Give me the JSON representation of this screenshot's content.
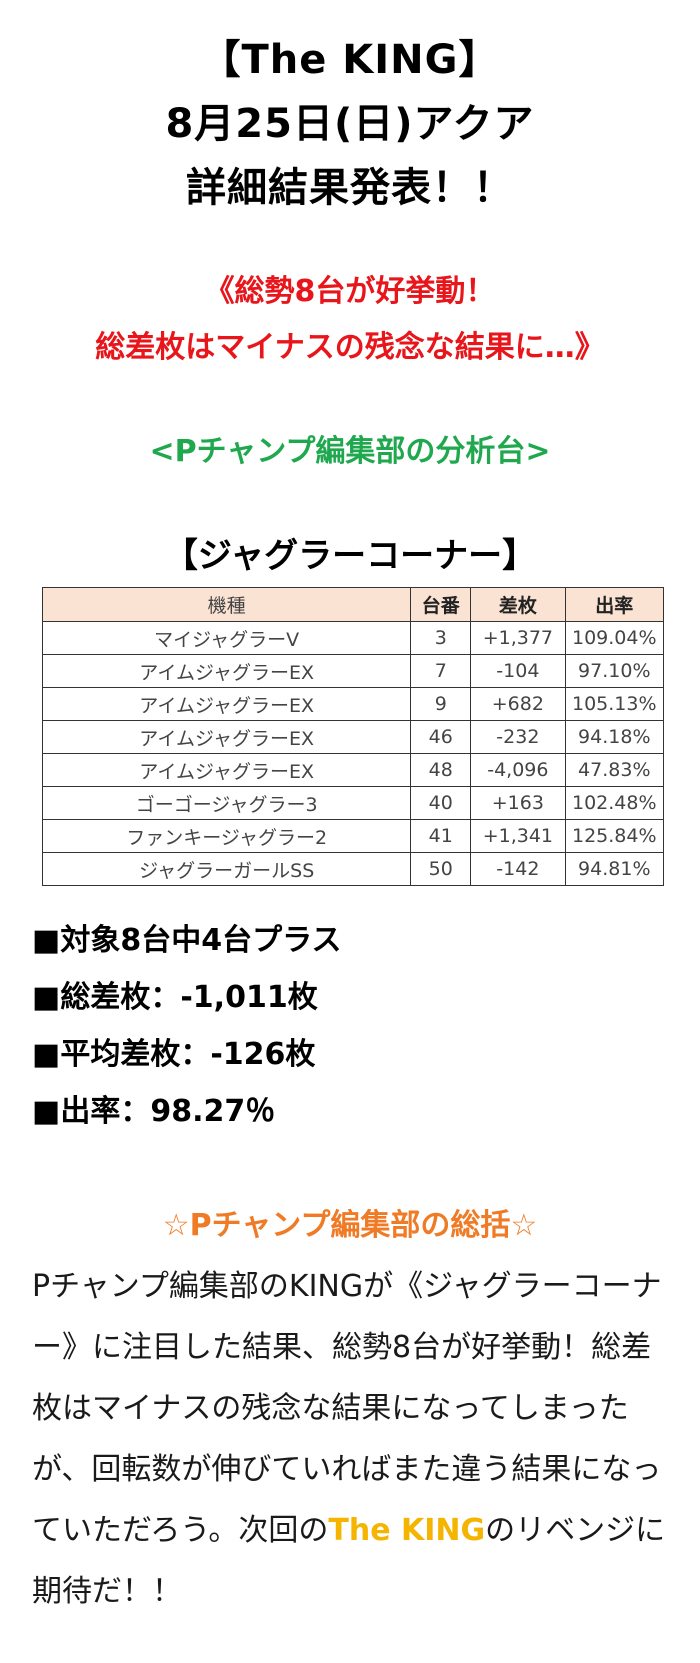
{
  "header": {
    "title_line1": "【The KING】",
    "title_line2": "8月25日(日)アクア",
    "title_line3": "詳細結果発表！！"
  },
  "headline": {
    "line1": "《総勢8台が好挙動！",
    "line2": "総差枚はマイナスの残念な結果に…》"
  },
  "analysis_label": "<Pチャンプ編集部の分析台>",
  "corner_title": "【ジャグラーコーナー】",
  "table": {
    "headers": [
      "機種",
      "台番",
      "差枚",
      "出率"
    ],
    "rows": [
      [
        "マイジャグラーV",
        "3",
        "+1,377",
        "109.04%"
      ],
      [
        "アイムジャグラーEX",
        "7",
        "-104",
        "97.10%"
      ],
      [
        "アイムジャグラーEX",
        "9",
        "+682",
        "105.13%"
      ],
      [
        "アイムジャグラーEX",
        "46",
        "-232",
        "94.18%"
      ],
      [
        "アイムジャグラーEX",
        "48",
        "-4,096",
        "47.83%"
      ],
      [
        "ゴーゴージャグラー3",
        "40",
        "+163",
        "102.48%"
      ],
      [
        "ファンキージャグラー2",
        "41",
        "+1,341",
        "125.84%"
      ],
      [
        "ジャグラーガールSS",
        "50",
        "-142",
        "94.81%"
      ]
    ]
  },
  "summary": {
    "line1": "■対象8台中4台プラス",
    "line2": "■総差枚：-1,011枚",
    "line3": "■平均差枚：-126枚",
    "line4": "■出率：98.27％"
  },
  "conclusion": {
    "title": "☆Pチャンプ編集部の総括☆",
    "text_before": "Pチャンプ編集部のKINGが《ジャグラーコーナー》に注目した結果、総勢8台が好挙動！総差枚はマイナスの残念な結果になってしまったが、回転数が伸びていればまた違う結果になっていただろう。次回の",
    "highlight": "The KING",
    "text_after": "のリベンジに期待だ！！"
  },
  "colors": {
    "headline": "#e8151b",
    "analysis": "#1fa84e",
    "conclusion_title": "#f07b26",
    "highlight": "#f4b400",
    "table_header_bg": "#fbe3d4"
  }
}
